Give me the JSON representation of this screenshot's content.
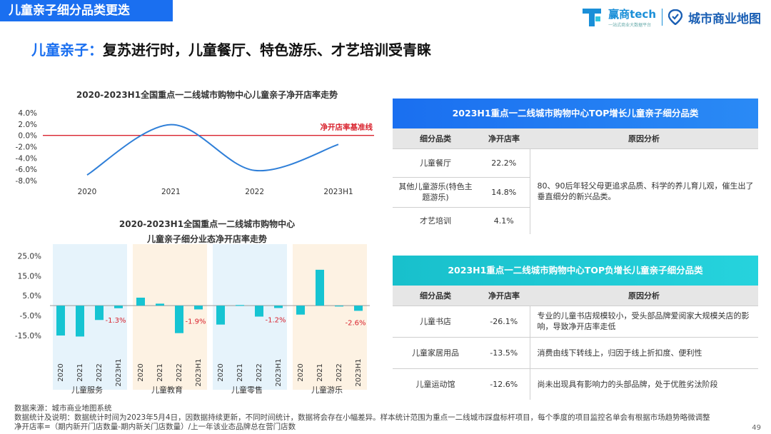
{
  "header": {
    "tag": "儿童亲子细分品类更迭",
    "logo1": "赢商tech",
    "logo1_sub": "一站式商业大数据平台",
    "logo2": "城市商业地图"
  },
  "headline": {
    "key": "儿童亲子：",
    "rest": "复苏进行时，儿童餐厅、特色游乐、才艺培训受青睐"
  },
  "colors": {
    "blue": "#1a6ff0",
    "cyan": "#18c0cc",
    "line": "#2f7fd8",
    "bar": "#16c4d2",
    "baseline": "#d9232e",
    "neg_label": "#d9232e"
  },
  "chart_data": [
    {
      "type": "line",
      "title": "2020-2023H1全国重点一二线城市购物中心儿童亲子净开店率走势",
      "x": [
        "2020",
        "2021",
        "2022",
        "2023H1"
      ],
      "y_ticks": [
        "4.0%",
        "2.0%",
        "0.0%",
        "-2.0%",
        "-4.0%",
        "-6.0%",
        "-8.0%"
      ],
      "ylim": [
        -8,
        4
      ],
      "series": [
        {
          "name": "净开店率",
          "values": [
            -7.0,
            1.9,
            -6.2,
            -1.6
          ]
        }
      ],
      "reference_line": {
        "value": 0,
        "label": "净开店率基准线"
      }
    },
    {
      "type": "bar",
      "title_line1": "2020-2023H1全国重点一二线城市购物中心",
      "title_line2": "儿童亲子细分业态净开店率走势",
      "y_ticks": [
        "25.0%",
        "15.0%",
        "5.0%",
        "-5.0%",
        "-15.0%"
      ],
      "ylim": [
        -20,
        28
      ],
      "periods": [
        "2020",
        "2021",
        "2022",
        "2023H1"
      ],
      "groups": [
        {
          "name": "儿童服务",
          "values": [
            -15.0,
            -15.5,
            -7.2,
            -1.3
          ],
          "band": "#e6f3fb"
        },
        {
          "name": "儿童教育",
          "values": [
            4.0,
            1.0,
            -13.8,
            -1.9
          ],
          "band": "#fdf2e3"
        },
        {
          "name": "儿童零售",
          "values": [
            -9.5,
            0.3,
            -5.5,
            -1.2
          ],
          "band": "#e6f3fb"
        },
        {
          "name": "儿童游乐",
          "values": [
            -4.5,
            18.0,
            -0.2,
            -2.6
          ],
          "band": "#fdf2e3"
        }
      ],
      "data_labels": [
        "-1.3%",
        "-1.9%",
        "-1.2%",
        "-2.6%"
      ]
    }
  ],
  "table_top": {
    "title": "2023H1重点一二线城市购物中心TOP增长儿童亲子细分品类",
    "headers": [
      "细分品类",
      "净开店率",
      "原因分析"
    ],
    "rows": [
      {
        "cat": "儿童餐厅",
        "rate": "22.2%"
      },
      {
        "cat": "其他儿童游乐(特色主题游乐)",
        "rate": "14.8%"
      },
      {
        "cat": "才艺培训",
        "rate": "4.1%"
      }
    ],
    "reason": "80、90后年轻父母更追求品质、科学的养儿育儿观，催生出了垂直细分的新兴品类。"
  },
  "table_bottom": {
    "title": "2023H1重点一二线城市购物中心TOP负增长儿童亲子细分品类",
    "headers": [
      "细分品类",
      "净开店率",
      "原因分析"
    ],
    "rows": [
      {
        "cat": "儿童书店",
        "rate": "-26.1%",
        "reason": "专业的儿童书店规模较小，受头部品牌爱阅家大规模关店的影响，导致净开店率走低"
      },
      {
        "cat": "儿童家居用品",
        "rate": "-13.5%",
        "reason": "消费由线下转线上，归因于线上折扣度、便利性"
      },
      {
        "cat": "儿童运动馆",
        "rate": "-12.6%",
        "reason": "尚未出现具有影响力的头部品牌，处于优胜劣汰阶段"
      }
    ]
  },
  "footer": {
    "line1": "数据来源：城市商业地图系统",
    "line2": "数据统计及说明：数据统计时间为2023年5月4日，因数据持续更新，不同时间统计，数据将会存在小幅差异。样本统计范围为重点一二线城市踩盘标杆项目，每个季度的项目监控名单会有根据市场趋势略微调整",
    "line3": "净开店率=（期内新开门店数量-期内新关门店数量）/上一年该业态品牌总在营门店数"
  },
  "page_number": "49"
}
